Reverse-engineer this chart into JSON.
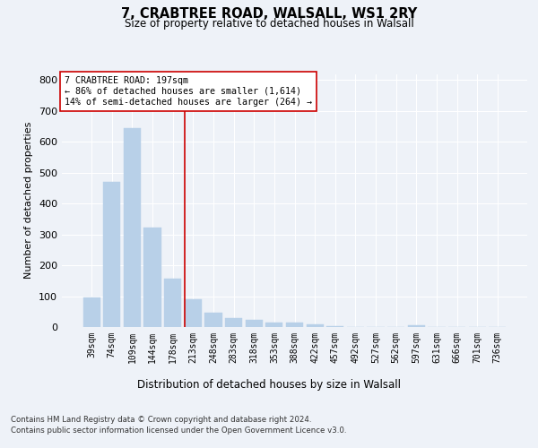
{
  "title1": "7, CRABTREE ROAD, WALSALL, WS1 2RY",
  "title2": "Size of property relative to detached houses in Walsall",
  "xlabel": "Distribution of detached houses by size in Walsall",
  "ylabel": "Number of detached properties",
  "categories": [
    "39sqm",
    "74sqm",
    "109sqm",
    "144sqm",
    "178sqm",
    "213sqm",
    "248sqm",
    "283sqm",
    "318sqm",
    "353sqm",
    "388sqm",
    "422sqm",
    "457sqm",
    "492sqm",
    "527sqm",
    "562sqm",
    "597sqm",
    "631sqm",
    "666sqm",
    "701sqm",
    "736sqm"
  ],
  "values": [
    95,
    470,
    645,
    323,
    157,
    91,
    45,
    30,
    22,
    15,
    14,
    8,
    4,
    0,
    0,
    0,
    5,
    0,
    0,
    0,
    0
  ],
  "bar_color": "#b8d0e8",
  "bar_edgecolor": "#b8d0e8",
  "vline_x": 4.58,
  "vline_color": "#cc0000",
  "annotation_title": "7 CRABTREE ROAD: 197sqm",
  "annotation_line1": "← 86% of detached houses are smaller (1,614)",
  "annotation_line2": "14% of semi-detached houses are larger (264) →",
  "annotation_box_color": "#ffffff",
  "annotation_box_edgecolor": "#cc0000",
  "ylim": [
    0,
    820
  ],
  "yticks": [
    0,
    100,
    200,
    300,
    400,
    500,
    600,
    700,
    800
  ],
  "footer1": "Contains HM Land Registry data © Crown copyright and database right 2024.",
  "footer2": "Contains public sector information licensed under the Open Government Licence v3.0.",
  "background_color": "#eef2f8",
  "grid_color": "#ffffff"
}
